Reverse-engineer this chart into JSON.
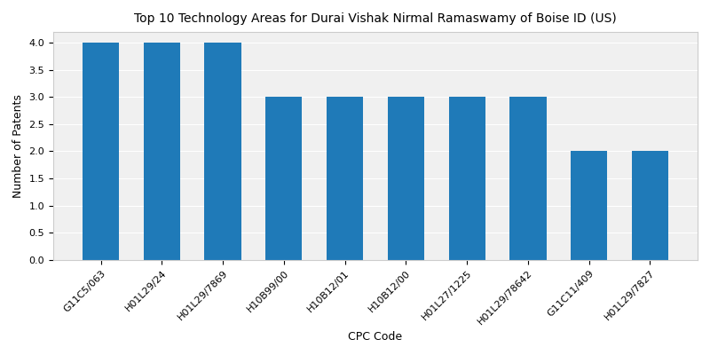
{
  "title": "Top 10 Technology Areas for Durai Vishak Nirmal Ramaswamy of Boise ID (US)",
  "xlabel": "CPC Code",
  "ylabel": "Number of Patents",
  "categories": [
    "G11C5/063",
    "H01L29/24",
    "H01L29/7869",
    "H10B99/00",
    "H10B12/01",
    "H10B12/00",
    "H01L27/1225",
    "H01L29/78642",
    "G11C11/409",
    "H01L29/7827"
  ],
  "values": [
    4,
    4,
    4,
    3,
    3,
    3,
    3,
    3,
    2,
    2
  ],
  "bar_color": "#1f7ab8",
  "ylim": [
    0,
    4.2
  ],
  "yticks": [
    0.0,
    0.5,
    1.0,
    1.5,
    2.0,
    2.5,
    3.0,
    3.5,
    4.0
  ],
  "title_fontsize": 10,
  "label_fontsize": 9,
  "tick_fontsize": 8,
  "bar_width": 0.6,
  "figsize": [
    8.0,
    4.0
  ],
  "dpi": 100
}
